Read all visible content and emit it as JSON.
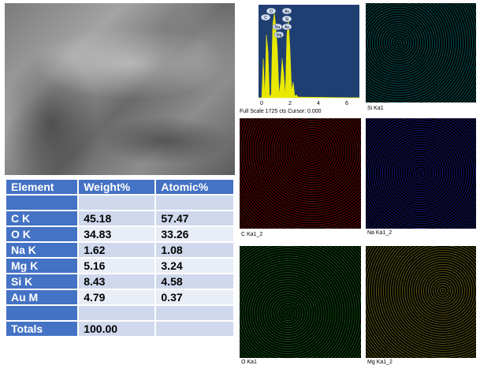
{
  "table": {
    "headers": [
      "Element",
      "Weight%",
      "Atomic%"
    ],
    "rows": [
      {
        "element": "C K",
        "weight": "45.18",
        "atomic": "57.47"
      },
      {
        "element": "O K",
        "weight": "34.83",
        "atomic": "33.26"
      },
      {
        "element": "Na K",
        "weight": "1.62",
        "atomic": "1.08"
      },
      {
        "element": "Mg K",
        "weight": "5.16",
        "atomic": "3.24"
      },
      {
        "element": "Si K",
        "weight": "8.43",
        "atomic": "4.58"
      },
      {
        "element": "Au M",
        "weight": "4.79",
        "atomic": "0.37"
      }
    ],
    "totals": {
      "label": "Totals",
      "weight": "100.00"
    }
  },
  "spectrum": {
    "footer": "Full Scale 1725 cts Cursor: 0.000",
    "x_ticks": [
      "0",
      "2",
      "4",
      "6"
    ],
    "peak_labels": [
      "C",
      "O",
      "Na",
      "Mg",
      "Au",
      "Si",
      "Au"
    ],
    "colors": {
      "background": "#1f3f73",
      "peaks": "#e8e800"
    }
  },
  "maps": {
    "si": "Si Ka1",
    "c": "C Ka1_2",
    "na": "Na Ka1_2",
    "o": "O Ka1",
    "mg": "Mg Ka1_2"
  }
}
